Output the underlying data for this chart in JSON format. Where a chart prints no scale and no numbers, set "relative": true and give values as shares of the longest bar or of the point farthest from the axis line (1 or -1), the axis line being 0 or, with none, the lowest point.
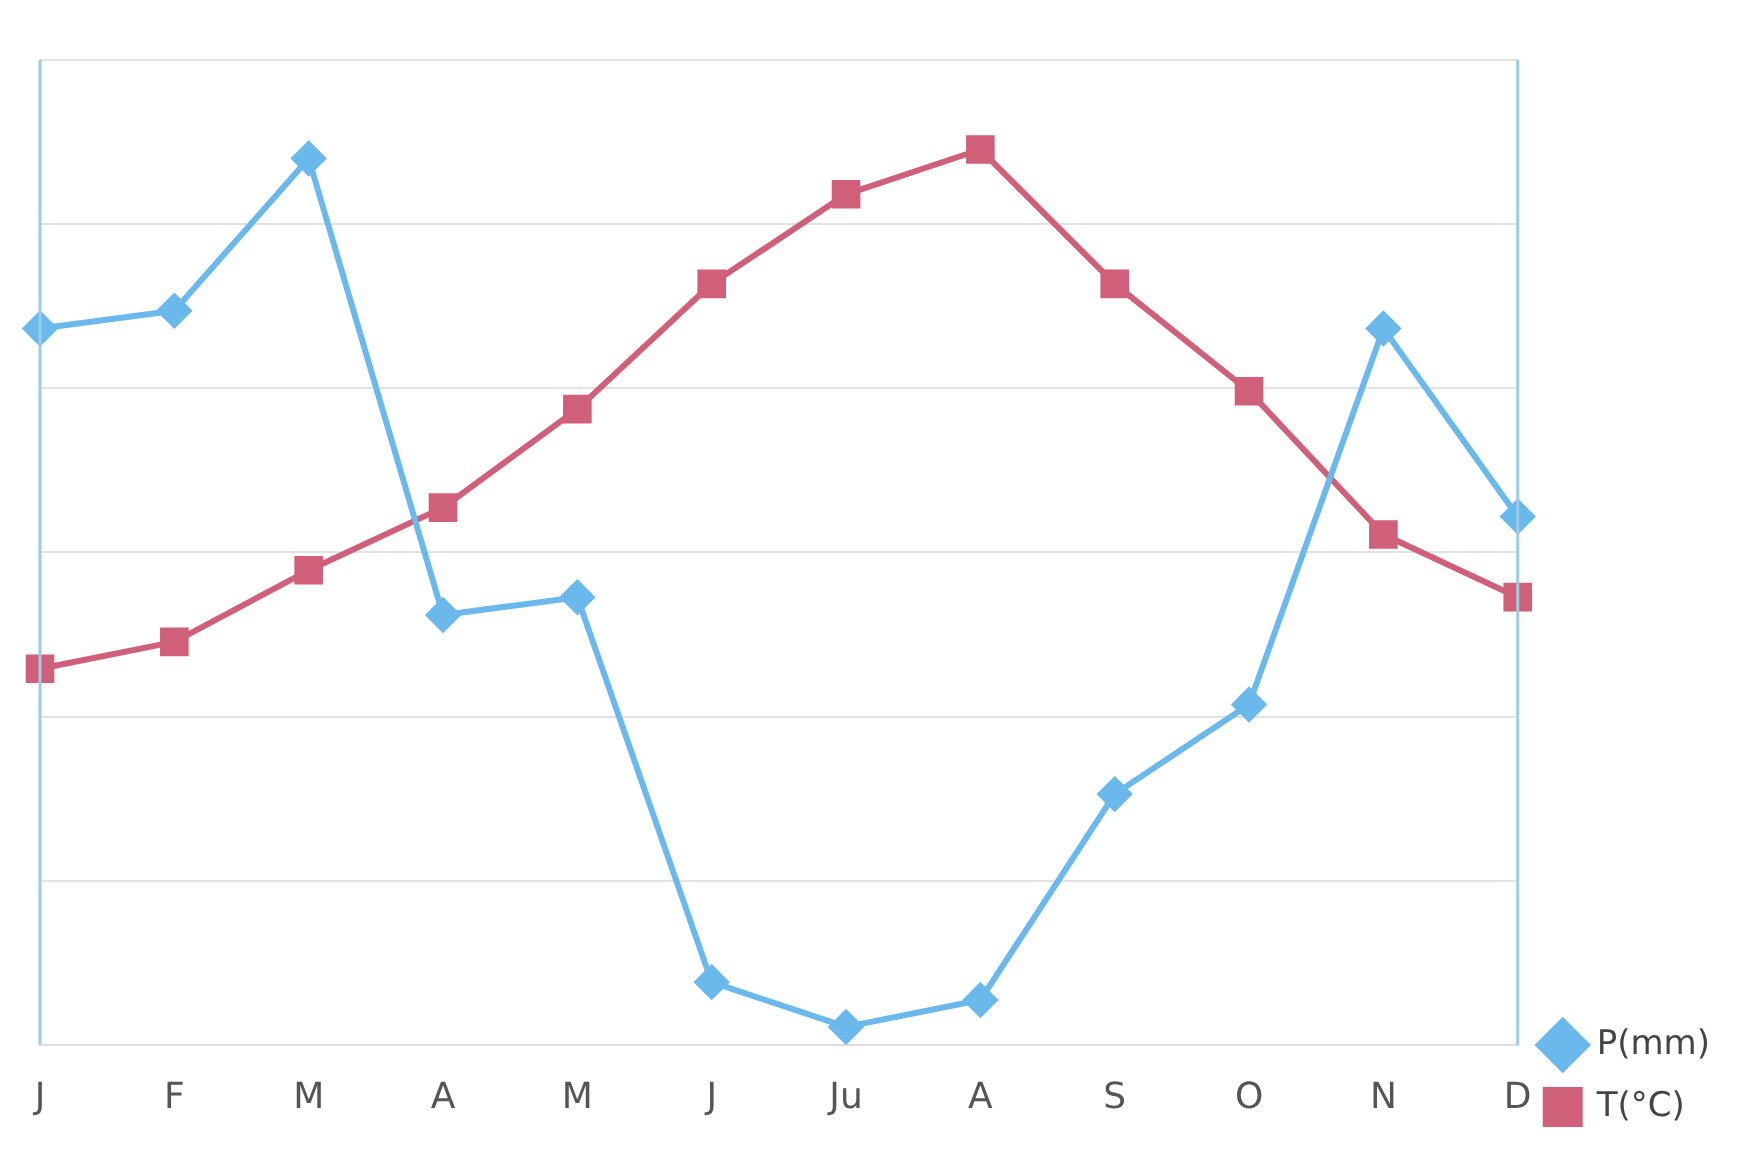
{
  "chart_data": {
    "type": "line",
    "relative": true,
    "categories": [
      "J",
      "F",
      "M",
      "A",
      "M",
      "J",
      "Ju",
      "A",
      "S",
      "O",
      "N",
      "D"
    ],
    "series": [
      {
        "name": "P(mm)",
        "color": "#6ab8ec",
        "marker": "diamond",
        "values": [
          0.8,
          0.82,
          0.99,
          0.48,
          0.5,
          0.07,
          0.02,
          0.05,
          0.28,
          0.38,
          0.8,
          0.59
        ]
      },
      {
        "name": "T(°C)",
        "color": "#d0607a",
        "marker": "square",
        "values": [
          0.42,
          0.45,
          0.53,
          0.6,
          0.71,
          0.85,
          0.95,
          1,
          0.85,
          0.73,
          0.57,
          0.5
        ]
      }
    ],
    "grid": "y",
    "legend": "bottom right",
    "line_style": "solid"
  }
}
